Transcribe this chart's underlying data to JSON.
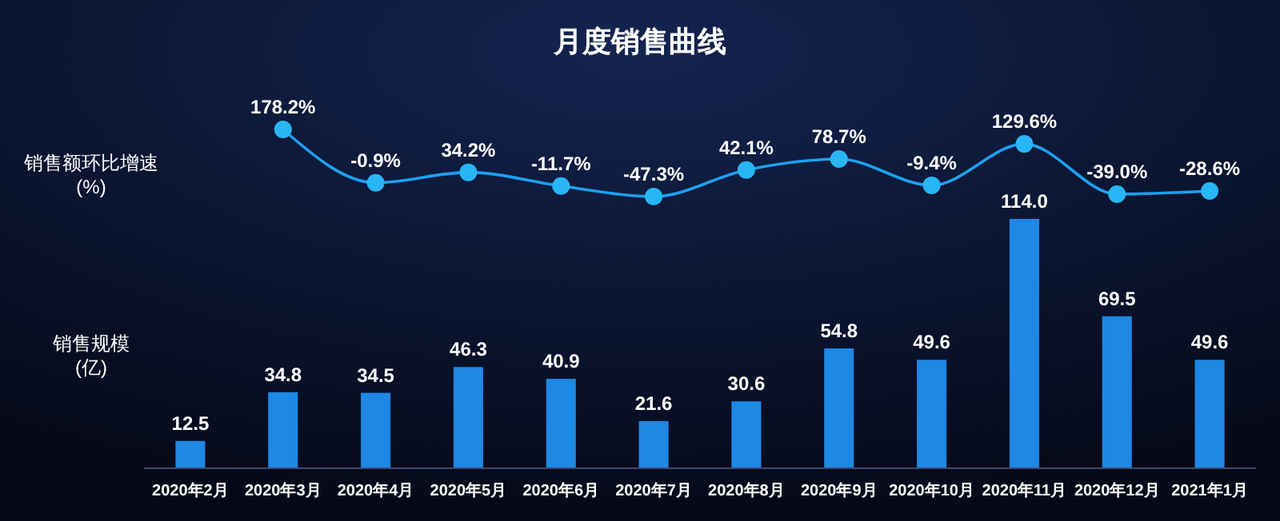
{
  "chart_data": [
    {
      "type": "line",
      "title": "月度销售曲线",
      "ylabel": "销售额环比增速\n(%)",
      "tick_labels": false,
      "marker": "circle",
      "categories": [
        null,
        null,
        null,
        null,
        null,
        null,
        null,
        null,
        null,
        null,
        null,
        null
      ],
      "series": [
        {
          "color": "#1ea0f0",
          "values": [
            null,
            178.2,
            -0.9,
            34.2,
            -11.7,
            -47.3,
            42.1,
            78.7,
            -9.4,
            129.6,
            -39.0,
            -28.6
          ],
          "value_labels": [
            null,
            "178.2%",
            "-0.9%",
            "34.2%",
            "-11.7%",
            "-47.3%",
            "42.1%",
            "78.7%",
            "-9.4%",
            "129.6%",
            "-39.0%",
            "-28.6%"
          ]
        }
      ]
    },
    {
      "type": "bar",
      "ylabel": "销售规模\n(亿)",
      "tick_labels": "x",
      "categories": [
        "2020年2月",
        "2020年3月",
        "2020年4月",
        "2020年5月",
        "2020年6月",
        "2020年7月",
        "2020年8月",
        "2020年9月",
        "2020年10月",
        "2020年11月",
        "2020年12月",
        "2021年1月"
      ],
      "series": [
        {
          "color": "#1e88e5",
          "values": [
            12.5,
            34.8,
            34.5,
            46.3,
            40.9,
            21.6,
            30.6,
            54.8,
            49.6,
            114.0,
            69.5,
            49.6
          ],
          "value_labels": [
            "12.5",
            "34.8",
            "34.5",
            "46.3",
            "40.9",
            "21.6",
            "30.6",
            "54.8",
            "49.6",
            "114.0",
            "69.5",
            "49.6"
          ]
        }
      ]
    }
  ]
}
